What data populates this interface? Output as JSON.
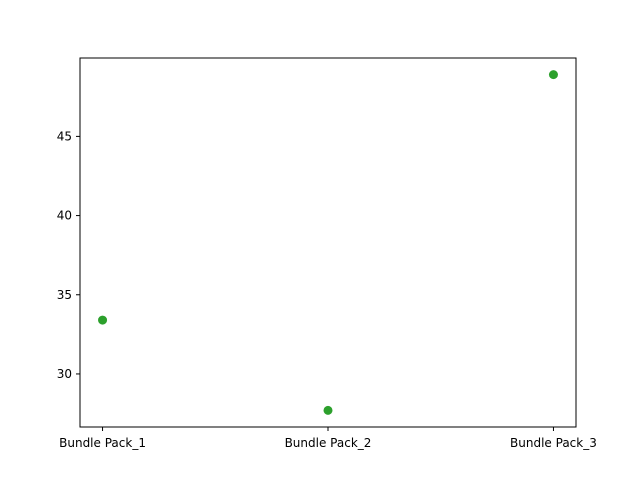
{
  "chart_data": {
    "type": "scatter",
    "title": "",
    "xlabel": "",
    "ylabel": "",
    "categories": [
      "Bundle Pack_1",
      "Bundle Pack_2",
      "Bundle Pack_3"
    ],
    "series": [
      {
        "values": [
          33.4,
          27.7,
          48.9
        ],
        "color": "#2ca02c"
      }
    ],
    "ylim": [
      26.65,
      49.95
    ],
    "yticks": [
      30,
      35,
      40,
      45
    ],
    "grid": false,
    "legend": "none"
  }
}
